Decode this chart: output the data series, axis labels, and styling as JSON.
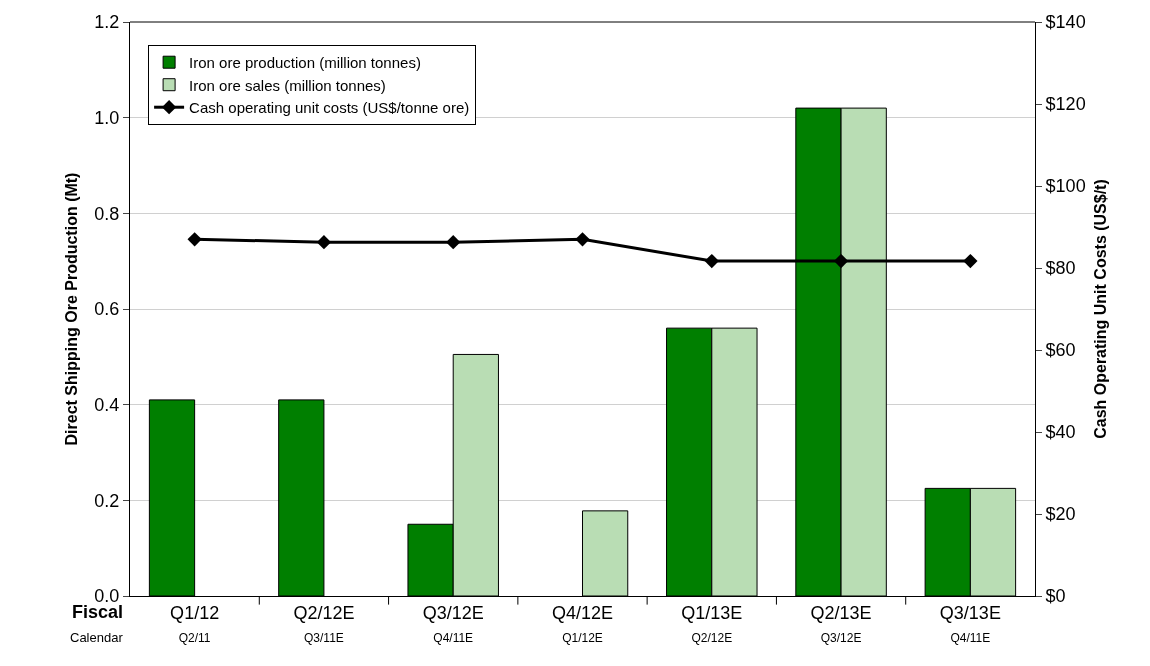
{
  "chart_data": {
    "type": "bar",
    "ylabel": "Direct Shipping Ore Production (Mt)",
    "y2label": "Cash Operating Unit Costs (US$/t)",
    "categories": [
      "Q1/12\nQ2/11",
      "Q2/12E\nQ3/11E",
      "Q3/12E\nQ4/11E",
      "Q4/12E\nQ1/12E",
      "Q1/13E\nQ2/12E",
      "Q2/13E\nQ3/12E",
      "Q3/13E\nQ4/11E"
    ],
    "series": [
      {
        "name": "Iron ore production (million tonnes)",
        "color": "#007f00",
        "values": [
          0.41,
          0.41,
          0.15,
          null,
          0.56,
          1.02,
          0.225
        ]
      },
      {
        "name": "Iron ore sales (million tonnes)",
        "color": "#b9ddb4",
        "values": [
          null,
          null,
          0.505,
          0.178,
          0.56,
          1.02,
          0.225
        ]
      },
      {
        "name": "Cash operating unit costs (US$/tonne ore)",
        "type": "line",
        "axis": "y2",
        "color": "#000000",
        "marker": "diamond",
        "values": [
          87,
          86.3,
          86.3,
          87,
          81.7,
          81.7,
          81.7
        ]
      }
    ],
    "ylim": [
      0,
      1.2
    ],
    "yticks": [
      {
        "value": 0,
        "label": "0.0"
      },
      {
        "value": 0.2,
        "label": "0.2"
      },
      {
        "value": 0.4,
        "label": "0.4"
      },
      {
        "value": 0.6,
        "label": "0.6"
      },
      {
        "value": 0.8,
        "label": "0.8"
      },
      {
        "value": 1,
        "label": "1.0"
      },
      {
        "value": 1.2,
        "label": "1.2"
      }
    ],
    "y2lim": [
      0,
      140
    ],
    "y2ticks": [
      {
        "value": 0,
        "label": "$0"
      },
      {
        "value": 20,
        "label": "$20"
      },
      {
        "value": 40,
        "label": "$40"
      },
      {
        "value": 60,
        "label": "$60"
      },
      {
        "value": 80,
        "label": "$80"
      },
      {
        "value": 100,
        "label": "$100"
      },
      {
        "value": 120,
        "label": "$120"
      },
      {
        "value": 140,
        "label": "$140"
      }
    ],
    "annotations": [
      "Fiscal",
      "Calendar"
    ],
    "grid": "y",
    "legend": "top left"
  }
}
